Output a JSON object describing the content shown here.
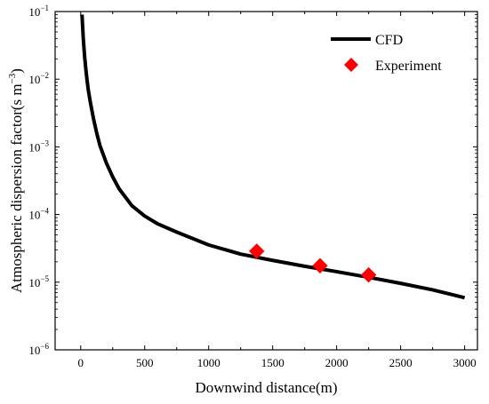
{
  "chart_data": {
    "type": "line",
    "xlabel": "Downwind distance(m)",
    "ylabel": "Atmospheric dispersion factor(s m",
    "ylabel_exponent": "−3",
    "ylabel_close": ")",
    "y_scale": "log",
    "xlim": [
      -200,
      3100
    ],
    "ylim": [
      1e-06,
      0.1
    ],
    "x_ticks": [
      0,
      500,
      1000,
      1500,
      2000,
      2500,
      3000
    ],
    "x_tick_labels": [
      "0",
      "500",
      "1000",
      "1500",
      "2000",
      "2500",
      "3000"
    ],
    "y_ticks": [
      1e-06,
      1e-05,
      0.0001,
      0.001,
      0.01,
      0.1
    ],
    "y_tick_labels": [
      {
        "base": "10",
        "exp": "−6"
      },
      {
        "base": "10",
        "exp": "−5"
      },
      {
        "base": "10",
        "exp": "−4"
      },
      {
        "base": "10",
        "exp": "−3"
      },
      {
        "base": "10",
        "exp": "−2"
      },
      {
        "base": "10",
        "exp": "−1"
      }
    ],
    "grid": false,
    "legend_position": "top-right",
    "series": [
      {
        "name": "CFD",
        "kind": "line",
        "color": "#000000",
        "points": [
          [
            10,
            0.09
          ],
          [
            15,
            0.06
          ],
          [
            20,
            0.04
          ],
          [
            30,
            0.022
          ],
          [
            40,
            0.014
          ],
          [
            50,
            0.0095
          ],
          [
            60,
            0.0068
          ],
          [
            75,
            0.0046
          ],
          [
            100,
            0.0026
          ],
          [
            125,
            0.0016
          ],
          [
            150,
            0.00105
          ],
          [
            200,
            0.00058
          ],
          [
            250,
            0.00036
          ],
          [
            300,
            0.00024
          ],
          [
            400,
            0.000135
          ],
          [
            500,
            9.5e-05
          ],
          [
            600,
            7.3e-05
          ],
          [
            750,
            5.5e-05
          ],
          [
            1000,
            3.55e-05
          ],
          [
            1250,
            2.6e-05
          ],
          [
            1500,
            2.1e-05
          ],
          [
            1750,
            1.72e-05
          ],
          [
            2000,
            1.43e-05
          ],
          [
            2250,
            1.18e-05
          ],
          [
            2500,
            9.6e-06
          ],
          [
            2750,
            7.7e-06
          ],
          [
            3000,
            5.9e-06
          ]
        ]
      },
      {
        "name": "Experiment",
        "kind": "scatter",
        "marker": "diamond",
        "color": "#ff0000",
        "points": [
          [
            1375,
            2.87e-05
          ],
          [
            1870,
            1.75e-05
          ],
          [
            2250,
            1.28e-05
          ]
        ]
      }
    ]
  }
}
